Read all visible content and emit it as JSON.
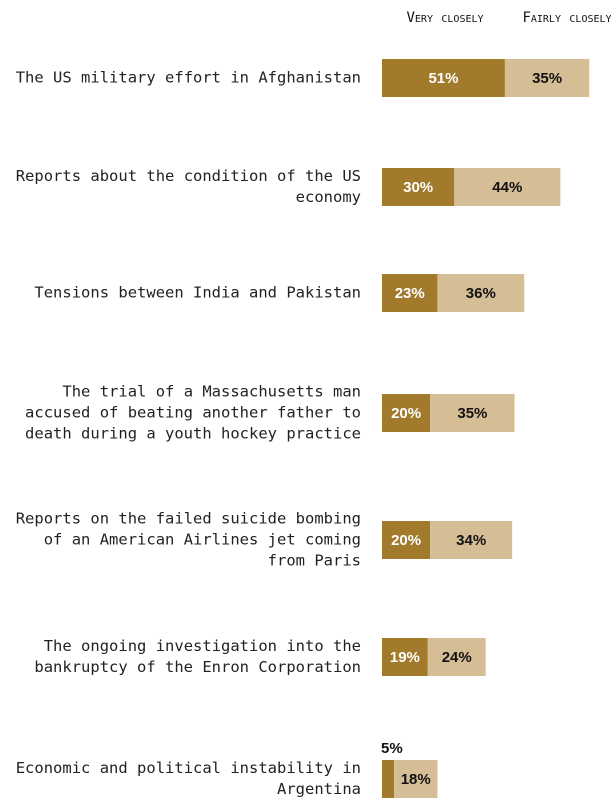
{
  "chart_data": {
    "type": "stacked-bar-horizontal",
    "categories": [
      "The US military effort in Afghanistan",
      "Reports about the condition of the US economy",
      "Tensions between India and Pakistan",
      "The trial of a Massachusetts man accused of beating another father to death during a youth hockey practice",
      "Reports on the failed suicide bombing of an American Airlines jet coming from Paris",
      "The ongoing investigation into the bankruptcy of the Enron Corporation",
      "Economic and political instability in Argentina"
    ],
    "series": [
      {
        "name": "Very closely",
        "color": "#a27a2c",
        "values": [
          51,
          30,
          23,
          20,
          20,
          19,
          5
        ],
        "value_labels": [
          "51%",
          "30%",
          "23%",
          "20%",
          "20%",
          "19%",
          "5%"
        ]
      },
      {
        "name": "Fairly closely",
        "color": "#d5bd95",
        "values": [
          35,
          44,
          36,
          35,
          34,
          24,
          18
        ],
        "value_labels": [
          "35%",
          "44%",
          "36%",
          "35%",
          "34%",
          "24%",
          "18%"
        ]
      }
    ]
  }
}
